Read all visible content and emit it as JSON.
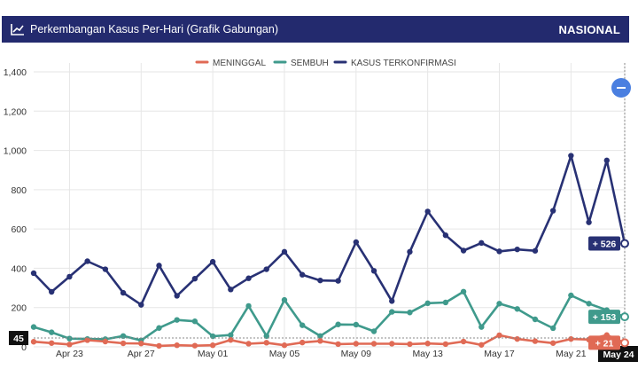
{
  "header": {
    "title": "Perkembangan Kasus Per-Hari (Grafik Gabungan)",
    "region": "NASIONAL",
    "icon": "line-chart-icon"
  },
  "zoom_button": {
    "icon": "minus-icon",
    "color": "#4a7fe0"
  },
  "colors": {
    "header_bg": "#232a6e",
    "meninggal": "#e06a55",
    "sembuh": "#3f9a8c",
    "terkonfirmasi": "#283174"
  },
  "chart_data": {
    "type": "line",
    "x_dates": [
      "Apr 21",
      "Apr 22",
      "Apr 23",
      "Apr 24",
      "Apr 25",
      "Apr 26",
      "Apr 27",
      "Apr 28",
      "Apr 29",
      "Apr 30",
      "May 01",
      "May 02",
      "May 03",
      "May 04",
      "May 05",
      "May 06",
      "May 07",
      "May 08",
      "May 09",
      "May 10",
      "May 11",
      "May 12",
      "May 13",
      "May 14",
      "May 15",
      "May 16",
      "May 17",
      "May 18",
      "May 19",
      "May 20",
      "May 21",
      "May 22",
      "May 23",
      "May 24"
    ],
    "x_tick_labels": [
      "Apr 23",
      "Apr 27",
      "May 01",
      "May 05",
      "May 09",
      "May 13",
      "May 17",
      "May 21",
      "May 24"
    ],
    "y_ticks": [
      "0",
      "200",
      "400",
      "600",
      "800",
      "1,000",
      "1,200",
      "1,400"
    ],
    "ylim": [
      0,
      1400
    ],
    "grid": true,
    "legend_position": "top",
    "series": [
      {
        "name": "MENINGGAL",
        "color": "#e06a55",
        "values": [
          26,
          19,
          12,
          34,
          27,
          18,
          17,
          5,
          8,
          6,
          8,
          35,
          16,
          21,
          8,
          22,
          30,
          14,
          16,
          16,
          16,
          14,
          17,
          14,
          27,
          10,
          59,
          40,
          29,
          19,
          40,
          37,
          60,
          21
        ]
      },
      {
        "name": "SEMBUH",
        "color": "#3f9a8c",
        "values": [
          101,
          74,
          42,
          40,
          39,
          55,
          33,
          96,
          137,
          130,
          54,
          60,
          208,
          55,
          239,
          110,
          55,
          114,
          113,
          79,
          178,
          175,
          222,
          226,
          281,
          101,
          220,
          193,
          140,
          95,
          262,
          220,
          187,
          153
        ]
      },
      {
        "name": "KASUS TERKONFIRMASI",
        "color": "#283174",
        "values": [
          375,
          280,
          357,
          436,
          395,
          275,
          214,
          414,
          260,
          347,
          433,
          292,
          349,
          395,
          484,
          367,
          338,
          336,
          533,
          387,
          233,
          484,
          689,
          568,
          490,
          529,
          486,
          496,
          489,
          693,
          973,
          634,
          949,
          526
        ]
      }
    ],
    "tags": {
      "terkonfirmasi_last": "+ 526",
      "sembuh_last": "+ 153",
      "meninggal_last": "+ 21",
      "crosshair_value": "45",
      "crosshair_date": "May 24"
    }
  }
}
